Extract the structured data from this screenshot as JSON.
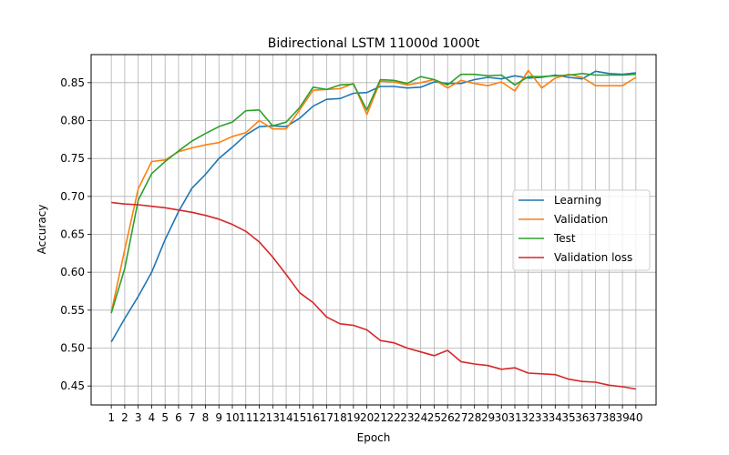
{
  "chart_data": {
    "type": "line",
    "title": "Bidirectional LSTM 11000d 1000t",
    "xlabel": "Epoch",
    "ylabel": "Accuracy",
    "x": [
      1,
      2,
      3,
      4,
      5,
      6,
      7,
      8,
      9,
      10,
      11,
      12,
      13,
      14,
      15,
      16,
      17,
      18,
      19,
      20,
      21,
      22,
      23,
      24,
      25,
      26,
      27,
      28,
      29,
      30,
      31,
      32,
      33,
      34,
      35,
      36,
      37,
      38,
      39,
      40
    ],
    "xlim": [
      -0.5,
      41.5
    ],
    "ylim": [
      0.425,
      0.887
    ],
    "yticks": [
      0.45,
      0.5,
      0.55,
      0.6,
      0.65,
      0.7,
      0.75,
      0.8,
      0.85
    ],
    "ytick_labels": [
      "0.45",
      "0.50",
      "0.55",
      "0.60",
      "0.65",
      "0.70",
      "0.75",
      "0.80",
      "0.85"
    ],
    "grid": true,
    "legend_position": "center-right",
    "series": [
      {
        "name": "Learning",
        "color": "#1f77b4",
        "values": [
          0.508,
          0.539,
          0.568,
          0.6,
          0.643,
          0.68,
          0.711,
          0.729,
          0.75,
          0.765,
          0.781,
          0.792,
          0.793,
          0.792,
          0.803,
          0.819,
          0.828,
          0.829,
          0.836,
          0.837,
          0.845,
          0.845,
          0.843,
          0.844,
          0.851,
          0.849,
          0.849,
          0.854,
          0.857,
          0.855,
          0.859,
          0.856,
          0.857,
          0.86,
          0.857,
          0.855,
          0.865,
          0.862,
          0.861,
          0.863
        ]
      },
      {
        "name": "Validation",
        "color": "#ff7f0e",
        "values": [
          0.547,
          0.63,
          0.71,
          0.746,
          0.748,
          0.759,
          0.764,
          0.768,
          0.771,
          0.779,
          0.784,
          0.8,
          0.789,
          0.789,
          0.814,
          0.84,
          0.841,
          0.842,
          0.849,
          0.808,
          0.852,
          0.851,
          0.847,
          0.85,
          0.854,
          0.843,
          0.853,
          0.849,
          0.846,
          0.851,
          0.839,
          0.866,
          0.843,
          0.856,
          0.861,
          0.857,
          0.846,
          0.846,
          0.846,
          0.857
        ]
      },
      {
        "name": "Test",
        "color": "#2ca02c",
        "values": [
          0.546,
          0.605,
          0.695,
          0.73,
          0.746,
          0.76,
          0.773,
          0.783,
          0.792,
          0.798,
          0.813,
          0.814,
          0.793,
          0.798,
          0.817,
          0.844,
          0.841,
          0.847,
          0.848,
          0.814,
          0.854,
          0.853,
          0.849,
          0.858,
          0.854,
          0.847,
          0.861,
          0.861,
          0.859,
          0.86,
          0.847,
          0.858,
          0.858,
          0.859,
          0.86,
          0.862,
          0.86,
          0.86,
          0.86,
          0.861
        ]
      },
      {
        "name": "Validation loss",
        "color": "#d62728",
        "values": [
          0.692,
          0.69,
          0.689,
          0.687,
          0.685,
          0.682,
          0.679,
          0.675,
          0.67,
          0.663,
          0.654,
          0.64,
          0.62,
          0.597,
          0.573,
          0.56,
          0.541,
          0.532,
          0.53,
          0.524,
          0.51,
          0.507,
          0.5,
          0.495,
          0.49,
          0.497,
          0.482,
          0.479,
          0.477,
          0.472,
          0.474,
          0.467,
          0.466,
          0.465,
          0.459,
          0.456,
          0.455,
          0.451,
          0.449,
          0.446
        ]
      }
    ]
  }
}
